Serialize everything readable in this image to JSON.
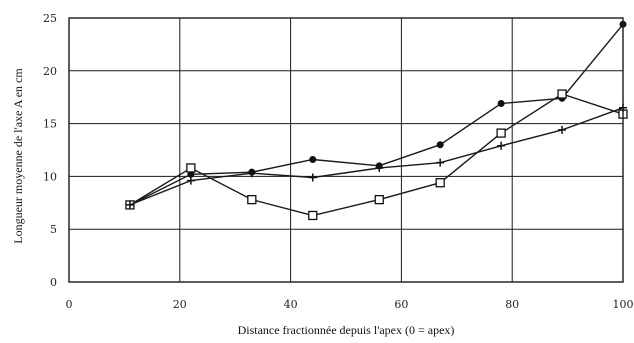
{
  "chart_data": {
    "type": "line",
    "xlabel": "Distance fractionnée depuis l'apex (0 = apex)",
    "ylabel": "Longueur moyenne de l'axe A en cm",
    "xlim": [
      0,
      100
    ],
    "ylim": [
      0,
      25
    ],
    "xticks": [
      0,
      20,
      40,
      60,
      80,
      100
    ],
    "yticks": [
      0,
      5,
      10,
      15,
      20,
      25
    ],
    "grid": true,
    "legend": "none",
    "series": [
      {
        "marker": "filled-circle",
        "x": [
          11,
          22,
          33,
          44,
          56,
          67,
          78,
          89,
          100
        ],
        "y": [
          7.3,
          10.2,
          10.4,
          11.6,
          11.0,
          13.0,
          16.9,
          17.4,
          24.4
        ]
      },
      {
        "marker": "open-square",
        "x": [
          11,
          22,
          33,
          44,
          56,
          67,
          78,
          89,
          100
        ],
        "y": [
          7.3,
          10.8,
          7.8,
          6.3,
          7.8,
          9.4,
          14.1,
          17.8,
          15.9
        ]
      },
      {
        "marker": "plus",
        "x": [
          11,
          22,
          33,
          44,
          56,
          67,
          78,
          89,
          100
        ],
        "y": [
          7.3,
          9.6,
          10.3,
          9.9,
          10.8,
          11.3,
          12.9,
          14.4,
          16.5
        ]
      }
    ]
  }
}
